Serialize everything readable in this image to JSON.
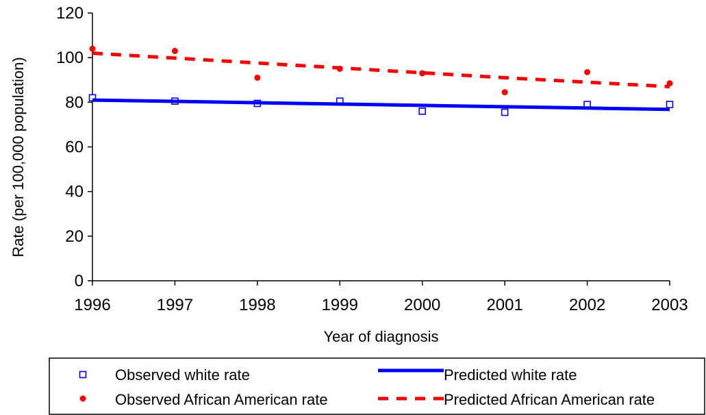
{
  "chart_data": {
    "type": "line",
    "title": "",
    "xlabel": "Year of diagnosis",
    "ylabel": "Rate (per 100,000 population)",
    "x": [
      1996,
      1997,
      1998,
      1999,
      2000,
      2001,
      2002,
      2003
    ],
    "x_tick_labels": [
      "1996",
      "1997",
      "1998",
      "1999",
      "2000",
      "2001",
      "2002",
      "2003"
    ],
    "ylim": [
      0,
      120
    ],
    "y_ticks": [
      0,
      20,
      40,
      60,
      80,
      100,
      120
    ],
    "y_tick_labels": [
      "0",
      "20",
      "40",
      "60",
      "80",
      "100",
      "120"
    ],
    "grid": false,
    "legend_position": "bottom",
    "series": [
      {
        "name": "Observed white rate",
        "style": "marker",
        "marker": "hollow-square",
        "color": "#0000FF",
        "values": [
          82.0,
          80.5,
          79.5,
          80.5,
          76.0,
          75.5,
          79.0,
          79.0
        ]
      },
      {
        "name": "Predicted white rate",
        "style": "line",
        "color": "#0000FF",
        "values": [
          81.0,
          80.4,
          79.8,
          79.2,
          78.6,
          78.0,
          77.4,
          76.8
        ]
      },
      {
        "name": "Observed African American rate",
        "style": "marker",
        "marker": "filled-circle",
        "color": "#FF0000",
        "values": [
          104.0,
          103.0,
          91.0,
          95.0,
          93.0,
          84.5,
          93.5,
          88.5
        ]
      },
      {
        "name": "Predicted African American rate",
        "style": "dashed-line",
        "color": "#FF0000",
        "values": [
          102.0,
          99.8,
          97.6,
          95.4,
          93.2,
          91.0,
          89.0,
          87.0
        ]
      }
    ]
  }
}
